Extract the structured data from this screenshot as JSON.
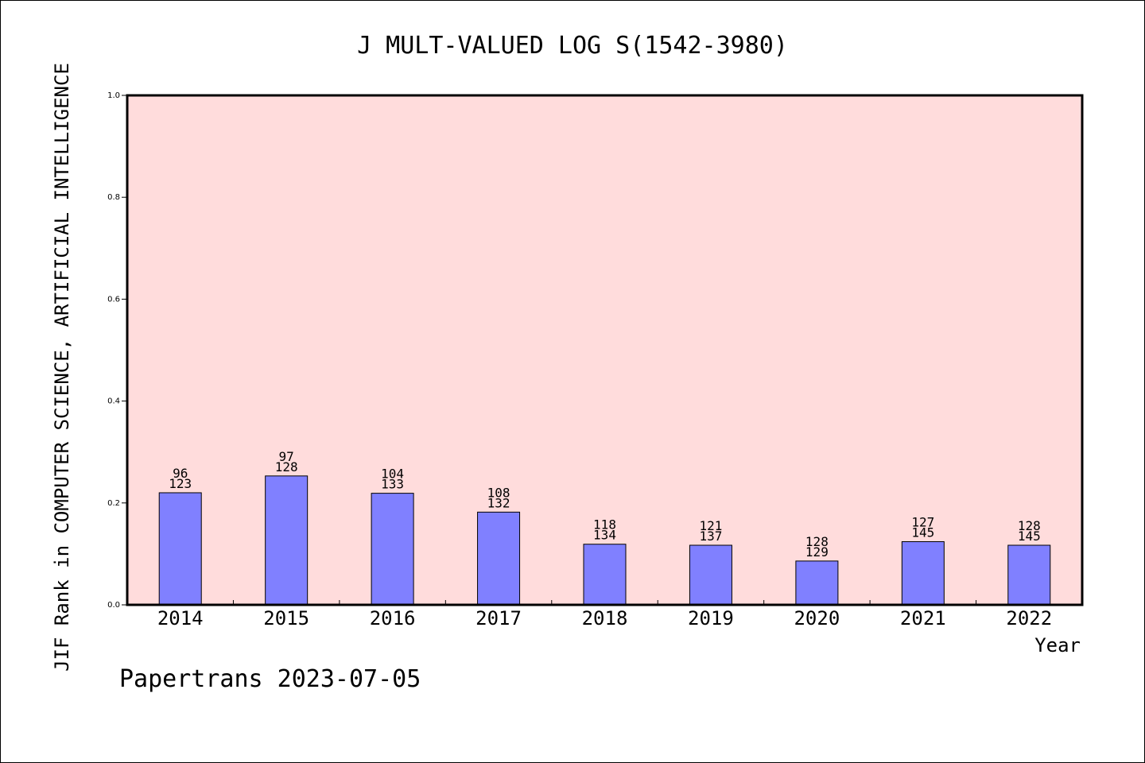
{
  "chart_data": {
    "type": "bar",
    "title": "J MULT-VALUED LOG S(1542-3980)",
    "xlabel": "Year",
    "ylabel": "JIF Rank in COMPUTER SCIENCE, ARTIFICIAL INTELLIGENCE",
    "ylim": [
      0,
      1.0
    ],
    "yticks": [
      "0.0",
      "0.2",
      "0.4",
      "0.6",
      "0.8",
      "1.0"
    ],
    "categories": [
      "2014",
      "2015",
      "2016",
      "2017",
      "2018",
      "2019",
      "2020",
      "2021",
      "2022"
    ],
    "values": [
      0.22,
      0.253,
      0.219,
      0.182,
      0.119,
      0.117,
      0.086,
      0.124,
      0.117
    ],
    "labels_top": [
      "96",
      "97",
      "104",
      "108",
      "118",
      "121",
      "128",
      "127",
      "128"
    ],
    "labels_bottom": [
      "123",
      "128",
      "133",
      "132",
      "134",
      "137",
      "129",
      "145",
      "145"
    ],
    "grid": false,
    "colors": {
      "bar": "#8080ff",
      "plot_background": "#ffdcdc",
      "frame": "#000000"
    }
  },
  "footer": {
    "credit": "Papertrans 2023-07-05"
  }
}
